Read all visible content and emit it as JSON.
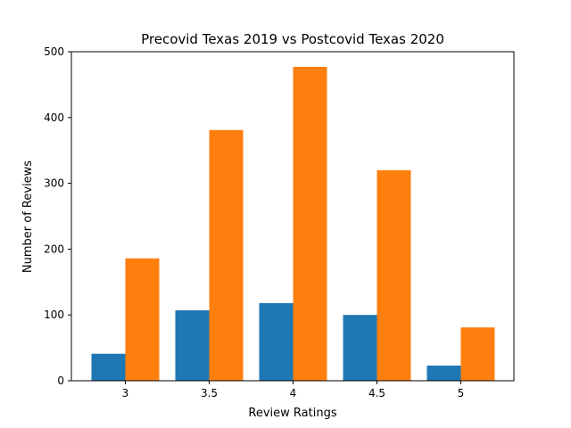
{
  "chart_data": {
    "type": "bar",
    "title": "Precovid Texas 2019 vs Postcovid Texas 2020",
    "xlabel": "Review Ratings",
    "ylabel": "Number of Reviews",
    "categories": [
      "3",
      "3.5",
      "4",
      "4.5",
      "5"
    ],
    "series": [
      {
        "color": "#1f77b4",
        "values": [
          41,
          107,
          118,
          100,
          23
        ]
      },
      {
        "color": "#ff7f0e",
        "values": [
          186,
          381,
          477,
          320,
          81
        ]
      }
    ],
    "ylim": [
      0,
      500
    ],
    "yticks": [
      "0",
      "100",
      "200",
      "300",
      "400",
      "500"
    ],
    "grid": false,
    "legend": "none"
  }
}
